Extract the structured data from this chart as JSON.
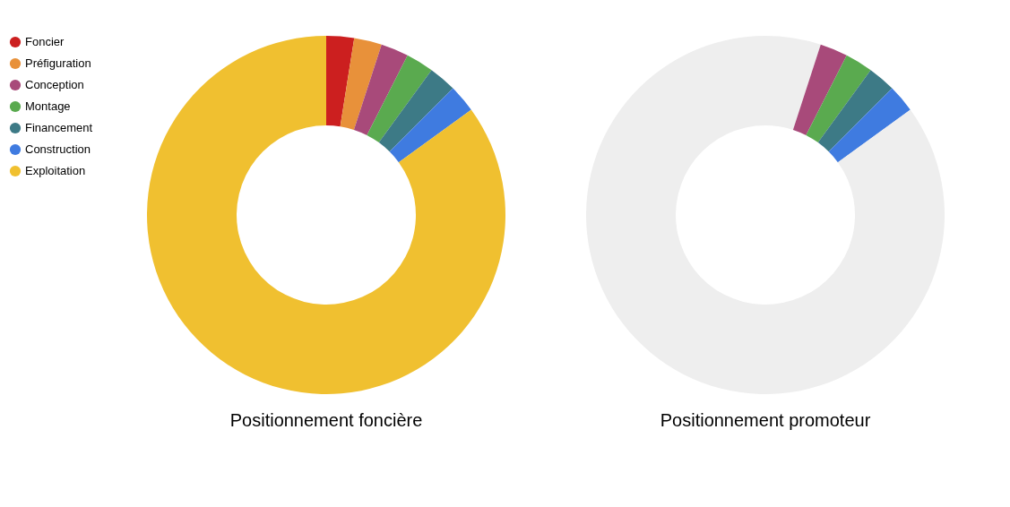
{
  "chart_data": [
    {
      "type": "donut",
      "title": "Positionnement foncière",
      "legend": "left",
      "categories": [
        "Foncier",
        "Préfiguration",
        "Conception",
        "Montage",
        "Financement",
        "Construction",
        "Exploitation"
      ],
      "values": [
        2.5,
        2.5,
        2.5,
        2.5,
        2.5,
        2.5,
        85
      ],
      "colors": [
        "#cc1f1f",
        "#e8913a",
        "#a84a7a",
        "#5aaa4f",
        "#3d7a86",
        "#3f7be0",
        "#f0c030"
      ]
    },
    {
      "type": "donut",
      "title": "Positionnement promoteur",
      "legend": false,
      "categories": [
        null,
        null,
        null,
        null,
        null,
        null
      ],
      "values": [
        5,
        2.5,
        2.5,
        2.5,
        2.5,
        85
      ],
      "colors": [
        "#eeeeee",
        "#a84a7a",
        "#5aaa4f",
        "#3d7a86",
        "#3f7be0",
        "#eeeeee"
      ]
    }
  ]
}
